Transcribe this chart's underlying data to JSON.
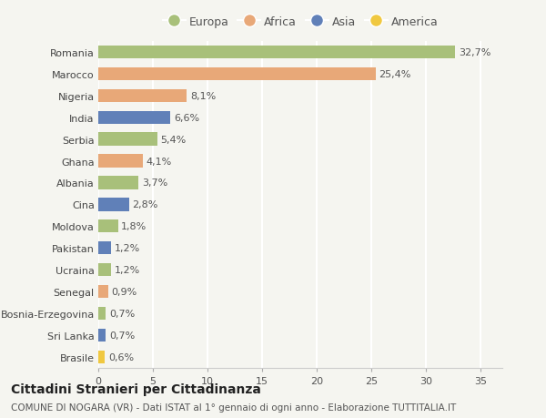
{
  "countries": [
    "Romania",
    "Marocco",
    "Nigeria",
    "India",
    "Serbia",
    "Ghana",
    "Albania",
    "Cina",
    "Moldova",
    "Pakistan",
    "Ucraina",
    "Senegal",
    "Bosnia-Erzegovina",
    "Sri Lanka",
    "Brasile"
  ],
  "values": [
    32.7,
    25.4,
    8.1,
    6.6,
    5.4,
    4.1,
    3.7,
    2.8,
    1.8,
    1.2,
    1.2,
    0.9,
    0.7,
    0.7,
    0.6
  ],
  "continents": [
    "Europa",
    "Africa",
    "Africa",
    "Asia",
    "Europa",
    "Africa",
    "Europa",
    "Asia",
    "Europa",
    "Asia",
    "Europa",
    "Africa",
    "Europa",
    "Asia",
    "America"
  ],
  "continent_colors": {
    "Europa": "#a8c07a",
    "Africa": "#e8a878",
    "Asia": "#6080b8",
    "America": "#f0c840"
  },
  "legend_order": [
    "Europa",
    "Africa",
    "Asia",
    "America"
  ],
  "labels": [
    "32,7%",
    "25,4%",
    "8,1%",
    "6,6%",
    "5,4%",
    "4,1%",
    "3,7%",
    "2,8%",
    "1,8%",
    "1,2%",
    "1,2%",
    "0,9%",
    "0,7%",
    "0,7%",
    "0,6%"
  ],
  "title": "Cittadini Stranieri per Cittadinanza",
  "subtitle": "COMUNE DI NOGARA (VR) - Dati ISTAT al 1° gennaio di ogni anno - Elaborazione TUTTITALIA.IT",
  "xlim": [
    0,
    37
  ],
  "xticks": [
    0,
    5,
    10,
    15,
    20,
    25,
    30,
    35
  ],
  "background_color": "#f5f5f0",
  "grid_color": "#ffffff",
  "bar_height": 0.6,
  "label_fontsize": 8,
  "tick_fontsize": 8,
  "ytick_fontsize": 8,
  "title_fontsize": 10,
  "subtitle_fontsize": 7.5
}
